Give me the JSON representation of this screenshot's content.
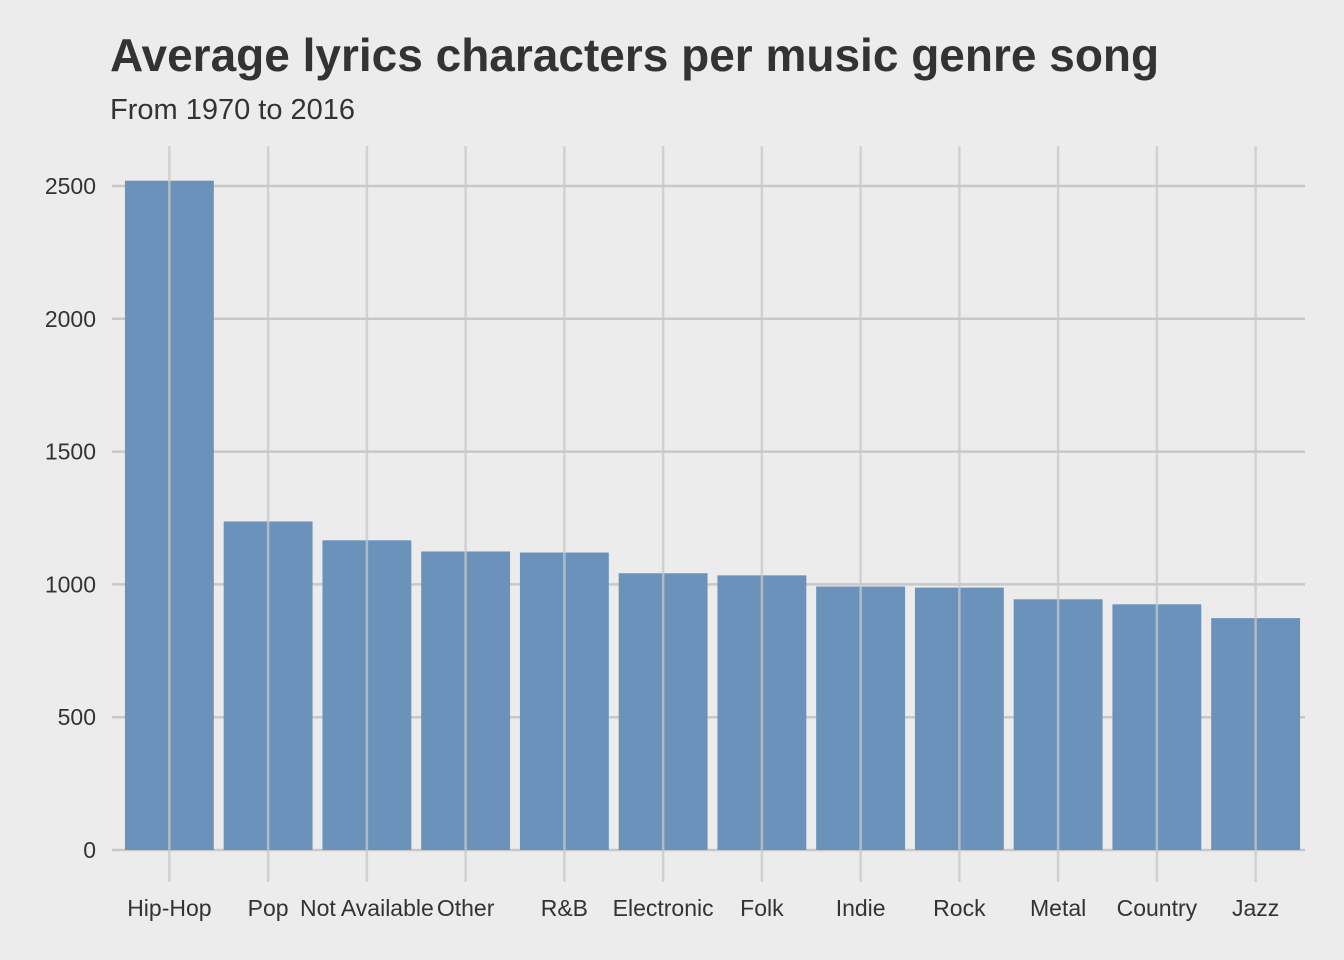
{
  "chart_data": {
    "type": "bar",
    "title": "Average lyrics characters per music genre song",
    "subtitle": "From 1970 to 2016",
    "xlabel": "",
    "ylabel": "",
    "categories": [
      "Hip-Hop",
      "Pop",
      "Not Available",
      "Other",
      "R&B",
      "Electronic",
      "Folk",
      "Indie",
      "Rock",
      "Metal",
      "Country",
      "Jazz"
    ],
    "values": [
      2520,
      1237,
      1166,
      1124,
      1120,
      1042,
      1034,
      992,
      988,
      944,
      925,
      873
    ],
    "ylim": [
      0,
      2650
    ],
    "yticks": [
      0,
      500,
      1000,
      1500,
      2000,
      2500
    ],
    "grid": true,
    "legend": "none",
    "bar_color": "#6a92bb",
    "background_color": "#ececec",
    "grid_color": "#c8c8c8"
  }
}
